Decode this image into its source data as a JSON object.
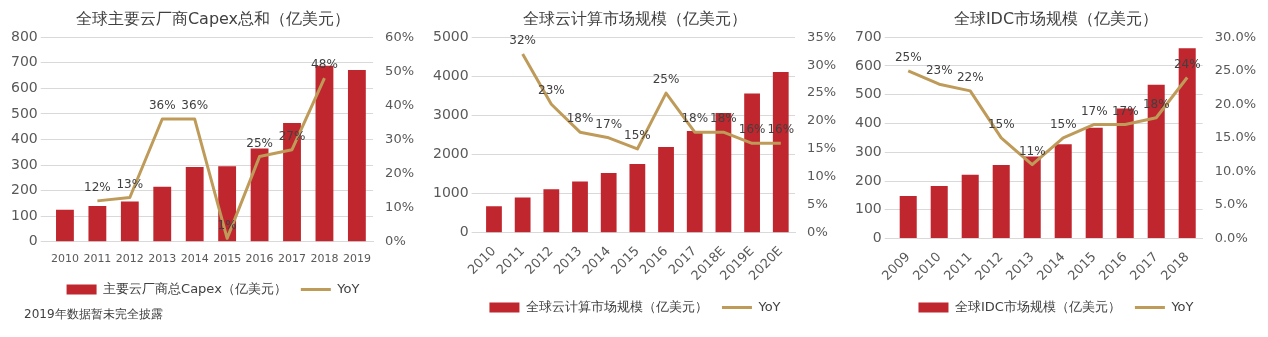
{
  "chart_data": [
    {
      "type": "bar",
      "title": "全球主要云厂商Capex总和（亿美元）",
      "categories": [
        "2010",
        "2011",
        "2012",
        "2013",
        "2014",
        "2015",
        "2016",
        "2017",
        "2018",
        "2019"
      ],
      "series": [
        {
          "name": "主要云厂商总Capex（亿美元）",
          "color": "#c0262d",
          "values": [
            125,
            140,
            158,
            215,
            292,
            295,
            365,
            465,
            688,
            672
          ]
        },
        {
          "name": "YoY",
          "type": "line",
          "axis": "y2",
          "color": "#bf9b5a",
          "values": [
            null,
            12,
            13,
            36,
            36,
            1,
            25,
            27,
            48,
            null
          ],
          "value_labels": [
            null,
            "12%",
            "13%",
            "36%",
            "36%",
            "1%",
            "25%",
            "27%",
            "48%",
            null
          ]
        }
      ],
      "ylim": [
        0,
        800
      ],
      "yticks": [
        0,
        100,
        200,
        300,
        400,
        500,
        600,
        700,
        800
      ],
      "y2lim": [
        0,
        60
      ],
      "y2ticks": [
        {
          "value": 0,
          "label": "0%"
        },
        {
          "value": 10,
          "label": "10%"
        },
        {
          "value": 20,
          "label": "20%"
        },
        {
          "value": 30,
          "label": "30%"
        },
        {
          "value": 40,
          "label": "40%"
        },
        {
          "value": 50,
          "label": "50%"
        },
        {
          "value": 60,
          "label": "60%"
        }
      ],
      "grid": "y",
      "legend": "bottom",
      "marker": "none",
      "annotations": [
        "2019年数据暂未完全披露"
      ]
    },
    {
      "type": "bar",
      "title": "全球云计算市场规模（亿美元）",
      "categories": [
        "2010",
        "2011",
        "2012",
        "2013",
        "2014",
        "2015",
        "2016",
        "2017",
        "2018E",
        "2019E",
        "2020E"
      ],
      "series": [
        {
          "name": "全球云计算市场规模（亿美元）",
          "color": "#c0262d",
          "values": [
            680,
            900,
            1110,
            1310,
            1530,
            1760,
            2190,
            2600,
            3060,
            3560,
            4110
          ]
        },
        {
          "name": "YoY",
          "type": "line",
          "axis": "y2",
          "color": "#bf9b5a",
          "values": [
            null,
            32,
            23,
            18,
            17,
            15,
            25,
            18,
            18,
            16,
            16
          ],
          "value_labels": [
            null,
            "32%",
            "23%",
            "18%",
            "17%",
            "15%",
            "25%",
            "18%",
            "18%",
            "16%",
            "16%"
          ]
        }
      ],
      "ylim": [
        0,
        5000
      ],
      "yticks": [
        0,
        1000,
        2000,
        3000,
        4000,
        5000
      ],
      "y2lim": [
        0,
        35
      ],
      "y2ticks": [
        {
          "value": 0,
          "label": "0%"
        },
        {
          "value": 5,
          "label": "5%"
        },
        {
          "value": 10,
          "label": "10%"
        },
        {
          "value": 15,
          "label": "15%"
        },
        {
          "value": 20,
          "label": "20%"
        },
        {
          "value": 25,
          "label": "25%"
        },
        {
          "value": 30,
          "label": "30%"
        },
        {
          "value": 35,
          "label": "35%"
        }
      ],
      "grid": "y",
      "legend": "bottom",
      "marker": "none"
    },
    {
      "type": "bar",
      "title": "全球IDC市场规模（亿美元）",
      "categories": [
        "2009",
        "2010",
        "2011",
        "2012",
        "2013",
        "2014",
        "2015",
        "2016",
        "2017",
        "2018"
      ],
      "series": [
        {
          "name": "全球IDC市场规模（亿美元）",
          "color": "#c0262d",
          "values": [
            148,
            183,
            222,
            256,
            285,
            328,
            385,
            452,
            535,
            662
          ]
        },
        {
          "name": "YoY",
          "type": "line",
          "axis": "y2",
          "color": "#bf9b5a",
          "values": [
            25,
            23,
            22,
            15,
            11,
            15,
            17,
            17,
            18,
            24
          ],
          "value_labels": [
            "25%",
            "23%",
            "22%",
            "15%",
            "11%",
            "15%",
            "17%",
            "17%",
            "18%",
            "24%"
          ]
        }
      ],
      "ylim": [
        0,
        700
      ],
      "yticks": [
        0,
        100,
        200,
        300,
        400,
        500,
        600,
        700
      ],
      "y2lim": [
        0,
        30
      ],
      "y2ticks": [
        {
          "value": 0,
          "label": "0.0%"
        },
        {
          "value": 5,
          "label": "5.0%"
        },
        {
          "value": 10,
          "label": "10.0%"
        },
        {
          "value": 15,
          "label": "15.0%"
        },
        {
          "value": 20,
          "label": "20.0%"
        },
        {
          "value": 25,
          "label": "25.0%"
        },
        {
          "value": 30,
          "label": "30.0%"
        }
      ],
      "grid": "y",
      "legend": "bottom",
      "marker": "none"
    }
  ]
}
